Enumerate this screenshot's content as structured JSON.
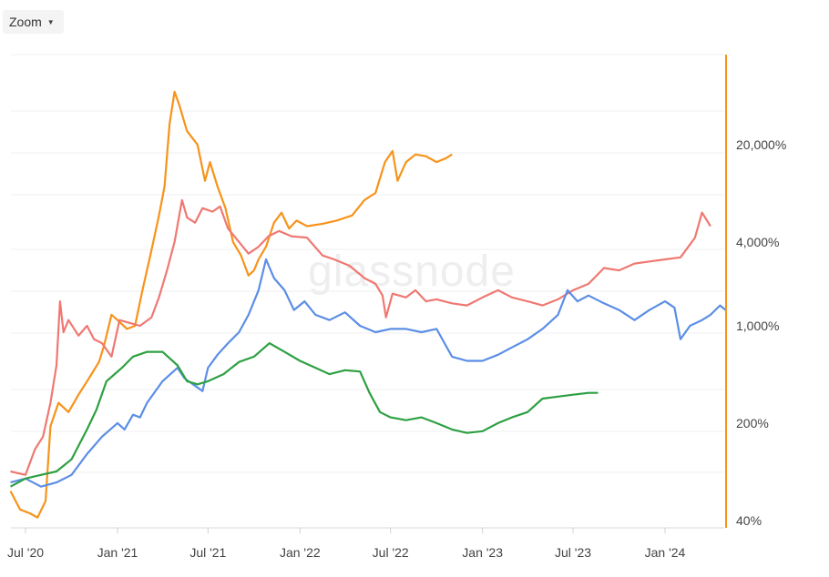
{
  "toolbar": {
    "zoom_label": "Zoom",
    "zoom_caret_icon": "caret-down-icon"
  },
  "watermark": "glassnode",
  "chart_data": {
    "type": "line",
    "title": "",
    "xlabel": "",
    "ylabel": "",
    "y_scale": "log",
    "y_axis_position": "right",
    "y_axis_color": "#f7931a",
    "grid": "horizontal",
    "x_ticks": [
      "Jul '20",
      "Jan '21",
      "Jul '21",
      "Jan '22",
      "Jul '22",
      "Jan '23",
      "Jul '23",
      "Jan '24"
    ],
    "y_ticks": [
      {
        "value": 40,
        "label": "40%"
      },
      {
        "value": 200,
        "label": "200%"
      },
      {
        "value": 1000,
        "label": "1,000%"
      },
      {
        "value": 4000,
        "label": "4,000%"
      },
      {
        "value": 20000,
        "label": "20,000%"
      }
    ],
    "series": [
      {
        "color": "#f7931a",
        "points": [
          [
            "2020-06-01",
            65
          ],
          [
            "2020-06-20",
            48
          ],
          [
            "2020-07-10",
            45
          ],
          [
            "2020-07-25",
            42
          ],
          [
            "2020-08-10",
            55
          ],
          [
            "2020-08-20",
            190
          ],
          [
            "2020-09-05",
            280
          ],
          [
            "2020-09-25",
            240
          ],
          [
            "2020-10-15",
            320
          ],
          [
            "2020-11-05",
            420
          ],
          [
            "2020-11-25",
            550
          ],
          [
            "2020-12-05",
            720
          ],
          [
            "2020-12-20",
            1200
          ],
          [
            "2021-01-01",
            1100
          ],
          [
            "2021-01-20",
            950
          ],
          [
            "2021-02-05",
            1000
          ],
          [
            "2021-02-20",
            1800
          ],
          [
            "2021-03-10",
            3500
          ],
          [
            "2021-03-25",
            6200
          ],
          [
            "2021-04-05",
            10000
          ],
          [
            "2021-04-15",
            28000
          ],
          [
            "2021-04-25",
            48000
          ],
          [
            "2021-05-05",
            38000
          ],
          [
            "2021-05-20",
            25000
          ],
          [
            "2021-06-10",
            20000
          ],
          [
            "2021-06-25",
            11000
          ],
          [
            "2021-07-05",
            15000
          ],
          [
            "2021-07-20",
            10000
          ],
          [
            "2021-08-05",
            7000
          ],
          [
            "2021-08-20",
            4000
          ],
          [
            "2021-09-05",
            3200
          ],
          [
            "2021-09-20",
            2300
          ],
          [
            "2021-10-01",
            2500
          ],
          [
            "2021-10-10",
            3000
          ],
          [
            "2021-10-25",
            3700
          ],
          [
            "2021-11-10",
            5500
          ],
          [
            "2021-11-25",
            6500
          ],
          [
            "2021-12-10",
            5000
          ],
          [
            "2021-12-25",
            5700
          ],
          [
            "2022-01-15",
            5200
          ],
          [
            "2022-02-15",
            5400
          ],
          [
            "2022-03-15",
            5700
          ],
          [
            "2022-04-15",
            6200
          ],
          [
            "2022-05-10",
            8000
          ],
          [
            "2022-06-01",
            9000
          ],
          [
            "2022-06-20",
            15000
          ],
          [
            "2022-07-05",
            18000
          ],
          [
            "2022-07-15",
            11000
          ],
          [
            "2022-08-01",
            15000
          ],
          [
            "2022-08-20",
            17000
          ],
          [
            "2022-09-10",
            16500
          ],
          [
            "2022-10-01",
            15000
          ],
          [
            "2022-10-20",
            16000
          ],
          [
            "2022-11-01",
            17000
          ]
        ]
      },
      {
        "color": "#ef7872",
        "points": [
          [
            "2020-06-01",
            90
          ],
          [
            "2020-07-01",
            85
          ],
          [
            "2020-07-20",
            130
          ],
          [
            "2020-08-05",
            160
          ],
          [
            "2020-08-20",
            280
          ],
          [
            "2020-09-01",
            520
          ],
          [
            "2020-09-08",
            1500
          ],
          [
            "2020-09-15",
            900
          ],
          [
            "2020-09-25",
            1100
          ],
          [
            "2020-10-15",
            850
          ],
          [
            "2020-11-01",
            1000
          ],
          [
            "2020-11-15",
            800
          ],
          [
            "2020-12-01",
            750
          ],
          [
            "2020-12-20",
            600
          ],
          [
            "2021-01-05",
            1100
          ],
          [
            "2021-01-25",
            1050
          ],
          [
            "2021-02-15",
            1000
          ],
          [
            "2021-03-10",
            1150
          ],
          [
            "2021-03-25",
            1600
          ],
          [
            "2021-04-10",
            2500
          ],
          [
            "2021-04-25",
            4000
          ],
          [
            "2021-05-10",
            8000
          ],
          [
            "2021-05-20",
            6000
          ],
          [
            "2021-06-05",
            5500
          ],
          [
            "2021-06-20",
            7000
          ],
          [
            "2021-07-10",
            6600
          ],
          [
            "2021-07-25",
            7200
          ],
          [
            "2021-08-10",
            5000
          ],
          [
            "2021-09-01",
            4000
          ],
          [
            "2021-09-20",
            3300
          ],
          [
            "2021-10-10",
            3700
          ],
          [
            "2021-10-30",
            4400
          ],
          [
            "2021-11-20",
            4800
          ],
          [
            "2021-12-15",
            4400
          ],
          [
            "2022-01-15",
            4300
          ],
          [
            "2022-02-15",
            3200
          ],
          [
            "2022-03-10",
            3000
          ],
          [
            "2022-04-10",
            2700
          ],
          [
            "2022-05-10",
            2200
          ],
          [
            "2022-06-01",
            2000
          ],
          [
            "2022-06-15",
            1650
          ],
          [
            "2022-06-22",
            1150
          ],
          [
            "2022-07-05",
            1700
          ],
          [
            "2022-08-01",
            1600
          ],
          [
            "2022-08-20",
            1800
          ],
          [
            "2022-09-10",
            1500
          ],
          [
            "2022-10-01",
            1550
          ],
          [
            "2022-11-01",
            1450
          ],
          [
            "2022-12-01",
            1400
          ],
          [
            "2023-01-01",
            1600
          ],
          [
            "2023-02-01",
            1800
          ],
          [
            "2023-03-01",
            1600
          ],
          [
            "2023-04-01",
            1500
          ],
          [
            "2023-05-01",
            1400
          ],
          [
            "2023-06-01",
            1550
          ],
          [
            "2023-07-01",
            1800
          ],
          [
            "2023-08-01",
            2000
          ],
          [
            "2023-09-01",
            2600
          ],
          [
            "2023-10-01",
            2500
          ],
          [
            "2023-11-01",
            2800
          ],
          [
            "2023-12-01",
            2900
          ],
          [
            "2024-01-01",
            3000
          ],
          [
            "2024-02-01",
            3100
          ],
          [
            "2024-03-01",
            4300
          ],
          [
            "2024-03-15",
            6500
          ],
          [
            "2024-04-01",
            5200
          ]
        ]
      },
      {
        "color": "#5b8ee6",
        "points": [
          [
            "2020-06-01",
            75
          ],
          [
            "2020-07-01",
            80
          ],
          [
            "2020-08-01",
            70
          ],
          [
            "2020-09-01",
            75
          ],
          [
            "2020-10-01",
            85
          ],
          [
            "2020-11-01",
            120
          ],
          [
            "2020-12-01",
            160
          ],
          [
            "2021-01-01",
            200
          ],
          [
            "2021-01-15",
            180
          ],
          [
            "2021-02-01",
            230
          ],
          [
            "2021-02-15",
            220
          ],
          [
            "2021-03-01",
            280
          ],
          [
            "2021-04-01",
            400
          ],
          [
            "2021-05-01",
            500
          ],
          [
            "2021-05-15",
            420
          ],
          [
            "2021-06-01",
            380
          ],
          [
            "2021-06-20",
            340
          ],
          [
            "2021-07-01",
            500
          ],
          [
            "2021-07-20",
            620
          ],
          [
            "2021-08-10",
            750
          ],
          [
            "2021-09-01",
            900
          ],
          [
            "2021-09-20",
            1200
          ],
          [
            "2021-10-10",
            1800
          ],
          [
            "2021-10-25",
            3000
          ],
          [
            "2021-11-10",
            2200
          ],
          [
            "2021-12-01",
            1800
          ],
          [
            "2021-12-20",
            1300
          ],
          [
            "2022-01-10",
            1500
          ],
          [
            "2022-02-01",
            1200
          ],
          [
            "2022-03-01",
            1100
          ],
          [
            "2022-04-01",
            1250
          ],
          [
            "2022-05-01",
            1000
          ],
          [
            "2022-06-01",
            900
          ],
          [
            "2022-07-01",
            950
          ],
          [
            "2022-08-01",
            950
          ],
          [
            "2022-09-01",
            900
          ],
          [
            "2022-10-01",
            950
          ],
          [
            "2022-11-01",
            600
          ],
          [
            "2022-12-01",
            560
          ],
          [
            "2023-01-01",
            560
          ],
          [
            "2023-02-01",
            620
          ],
          [
            "2023-03-01",
            700
          ],
          [
            "2023-04-01",
            800
          ],
          [
            "2023-05-01",
            950
          ],
          [
            "2023-06-01",
            1200
          ],
          [
            "2023-06-20",
            1800
          ],
          [
            "2023-07-10",
            1500
          ],
          [
            "2023-08-01",
            1650
          ],
          [
            "2023-09-01",
            1450
          ],
          [
            "2023-10-01",
            1300
          ],
          [
            "2023-11-01",
            1100
          ],
          [
            "2023-12-01",
            1300
          ],
          [
            "2024-01-01",
            1500
          ],
          [
            "2024-01-20",
            1350
          ],
          [
            "2024-02-01",
            800
          ],
          [
            "2024-02-20",
            1000
          ],
          [
            "2024-03-15",
            1100
          ],
          [
            "2024-04-01",
            1200
          ],
          [
            "2024-04-20",
            1400
          ],
          [
            "2024-05-01",
            1300
          ]
        ]
      },
      {
        "color": "#2ea043",
        "points": [
          [
            "2020-06-01",
            70
          ],
          [
            "2020-07-01",
            80
          ],
          [
            "2020-08-01",
            85
          ],
          [
            "2020-09-01",
            90
          ],
          [
            "2020-10-01",
            110
          ],
          [
            "2020-11-01",
            180
          ],
          [
            "2020-11-20",
            250
          ],
          [
            "2020-12-10",
            400
          ],
          [
            "2021-01-10",
            500
          ],
          [
            "2021-02-01",
            600
          ],
          [
            "2021-03-01",
            650
          ],
          [
            "2021-04-01",
            650
          ],
          [
            "2021-05-01",
            520
          ],
          [
            "2021-05-20",
            400
          ],
          [
            "2021-06-10",
            380
          ],
          [
            "2021-07-01",
            400
          ],
          [
            "2021-08-01",
            450
          ],
          [
            "2021-09-01",
            550
          ],
          [
            "2021-10-01",
            600
          ],
          [
            "2021-11-01",
            750
          ],
          [
            "2021-12-01",
            650
          ],
          [
            "2022-01-01",
            560
          ],
          [
            "2022-02-01",
            500
          ],
          [
            "2022-03-01",
            450
          ],
          [
            "2022-04-01",
            480
          ],
          [
            "2022-05-01",
            470
          ],
          [
            "2022-05-20",
            330
          ],
          [
            "2022-06-10",
            240
          ],
          [
            "2022-07-01",
            220
          ],
          [
            "2022-08-01",
            210
          ],
          [
            "2022-09-01",
            220
          ],
          [
            "2022-10-01",
            200
          ],
          [
            "2022-11-01",
            180
          ],
          [
            "2022-12-01",
            170
          ],
          [
            "2023-01-01",
            175
          ],
          [
            "2023-02-01",
            200
          ],
          [
            "2023-03-01",
            220
          ],
          [
            "2023-04-01",
            240
          ],
          [
            "2023-05-01",
            300
          ],
          [
            "2023-06-01",
            310
          ],
          [
            "2023-07-01",
            320
          ],
          [
            "2023-08-01",
            330
          ],
          [
            "2023-08-20",
            330
          ]
        ]
      }
    ]
  }
}
